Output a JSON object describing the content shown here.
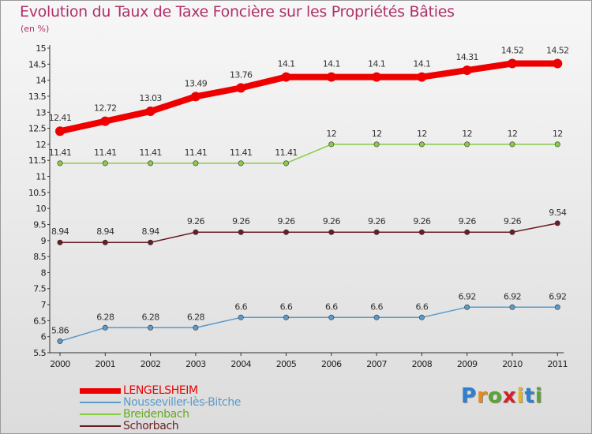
{
  "colors": {
    "title": "#b0306a",
    "series": [
      "#ee0000",
      "#5b9ac9",
      "#88cc44",
      "#6a1e24"
    ]
  },
  "chart_data": {
    "type": "line",
    "title": "Evolution du Taux de Taxe Foncière sur les Propriétés Bâties",
    "subtitle": "(en %)",
    "xlabel": "",
    "ylabel": "",
    "ylim": [
      5.5,
      15
    ],
    "grid": false,
    "legend_position": "bottom-left",
    "x": [
      2000,
      2001,
      2002,
      2003,
      2004,
      2005,
      2006,
      2007,
      2008,
      2009,
      2010,
      2011
    ],
    "x_tick_labels": [
      "2000",
      "2001",
      "2002",
      "2003",
      "2004",
      "2005",
      "2006",
      "2007",
      "2008",
      "2009",
      "2010",
      "2011"
    ],
    "y_ticks": [
      5.5,
      6,
      6.5,
      7,
      7.5,
      8,
      8.5,
      9,
      9.5,
      10,
      10.5,
      11,
      11.5,
      12,
      12.5,
      13,
      13.5,
      14,
      14.5,
      15
    ],
    "y_tick_labels": [
      "5.5",
      "6",
      "6.5",
      "7",
      "7.5",
      "8",
      "8.5",
      "9",
      "9.5",
      "10",
      "10.5",
      "11",
      "11.5",
      "12",
      "12.5",
      "13",
      "13.5",
      "14",
      "14.5",
      "15"
    ],
    "series": [
      {
        "name": "LENGELSHEIM",
        "values": [
          12.41,
          12.72,
          13.03,
          13.49,
          13.76,
          14.1,
          14.1,
          14.1,
          14.1,
          14.31,
          14.52,
          14.52
        ],
        "labels": [
          "12.41",
          "12.72",
          "13.03",
          "13.49",
          "13.76",
          "14.1",
          "14.1",
          "14.1",
          "14.1",
          "14.31",
          "14.52",
          "14.52"
        ]
      },
      {
        "name": "Nousseviller-lès-Bitche",
        "values": [
          5.86,
          6.28,
          6.28,
          6.28,
          6.6,
          6.6,
          6.6,
          6.6,
          6.6,
          6.92,
          6.92,
          6.92
        ],
        "labels": [
          "5.86",
          "6.28",
          "6.28",
          "6.28",
          "6.6",
          "6.6",
          "6.6",
          "6.6",
          "6.6",
          "6.92",
          "6.92",
          "6.92"
        ]
      },
      {
        "name": "Breidenbach",
        "values": [
          11.41,
          11.41,
          11.41,
          11.41,
          11.41,
          11.41,
          12,
          12,
          12,
          12,
          12,
          12
        ],
        "labels": [
          "11.41",
          "11.41",
          "11.41",
          "11.41",
          "11.41",
          "11.41",
          "12",
          "12",
          "12",
          "12",
          "12",
          "12"
        ]
      },
      {
        "name": "Schorbach",
        "values": [
          8.94,
          8.94,
          8.94,
          9.26,
          9.26,
          9.26,
          9.26,
          9.26,
          9.26,
          9.26,
          9.26,
          9.54
        ],
        "labels": [
          "8.94",
          "8.94",
          "8.94",
          "9.26",
          "9.26",
          "9.26",
          "9.26",
          "9.26",
          "9.26",
          "9.26",
          "9.26",
          "9.54"
        ]
      }
    ]
  },
  "legend": {
    "items": [
      "LENGELSHEIM",
      "Nousseviller-lès-Bitche",
      "Breidenbach",
      "Schorbach"
    ]
  },
  "logo": {
    "letters": [
      "P",
      "r",
      "o",
      "x",
      "i",
      "t",
      "i"
    ],
    "colors": [
      "#2e7fd0",
      "#e8891b",
      "#5aa632",
      "#d81f26",
      "#e8b41b",
      "#2e7fd0",
      "#5aa632"
    ]
  }
}
